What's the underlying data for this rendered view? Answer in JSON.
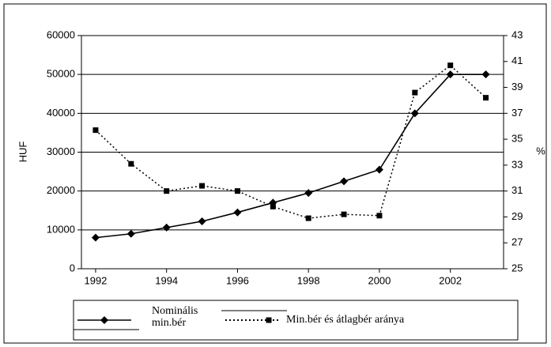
{
  "chart_data": {
    "type": "line",
    "y_label": "HUF",
    "y2_label": "%",
    "x": [
      1992,
      1993,
      1994,
      1995,
      1996,
      1997,
      1998,
      1999,
      2000,
      2001,
      2002,
      2003
    ],
    "xlim": [
      1991.6,
      2003.5
    ],
    "xticks": [
      1992,
      1994,
      1996,
      1998,
      2000,
      2002
    ],
    "ylim": [
      0,
      60000
    ],
    "yticks": [
      0,
      10000,
      20000,
      30000,
      40000,
      50000,
      60000
    ],
    "y2lim": [
      25,
      43
    ],
    "y2ticks": [
      25,
      27,
      29,
      31,
      33,
      35,
      37,
      39,
      41,
      43
    ],
    "grid": true,
    "series": [
      {
        "name": "Nominális min.bér",
        "color": "#000000",
        "style": "solid",
        "marker": "diamond",
        "values": [
          8000,
          9000,
          10600,
          12200,
          14500,
          17000,
          19500,
          22500,
          25500,
          40000,
          50000,
          50000
        ]
      },
      {
        "name": "Min.bér és átlagbér aránya",
        "color": "#000000",
        "style": "dotted",
        "marker": "square",
        "axis": "y2",
        "values": [
          35.7,
          33.1,
          31.0,
          31.4,
          31.0,
          29.8,
          28.9,
          29.2,
          29.1,
          38.6,
          40.7,
          38.2
        ]
      }
    ]
  }
}
